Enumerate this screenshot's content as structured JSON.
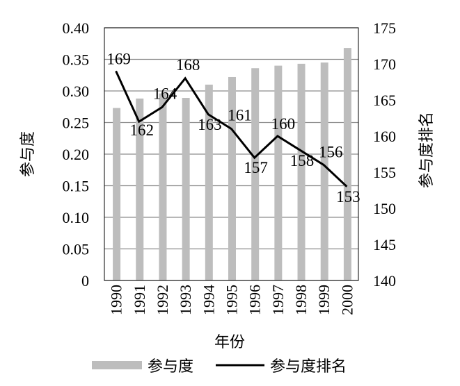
{
  "chart_data": {
    "type": "bar+line",
    "xlabel": "年份",
    "categories": [
      "1990",
      "1991",
      "1992",
      "1993",
      "1994",
      "1995",
      "1996",
      "1997",
      "1998",
      "1999",
      "2000"
    ],
    "series": [
      {
        "name": "参与度",
        "type": "bar",
        "axis": "left",
        "color": "#bdbdbd",
        "values": [
          0.273,
          0.288,
          0.296,
          0.289,
          0.31,
          0.322,
          0.336,
          0.34,
          0.343,
          0.345,
          0.368
        ]
      },
      {
        "name": "参与度排名",
        "type": "line",
        "axis": "right",
        "color": "#000000",
        "values": [
          169,
          162,
          164,
          168,
          163,
          161,
          157,
          160,
          158,
          156,
          153
        ],
        "labels": [
          "169",
          "162",
          "164",
          "168",
          "163",
          "161",
          "157",
          "160",
          "158",
          "156",
          "153"
        ]
      }
    ],
    "y_left": {
      "label": "参与度",
      "lim": [
        0,
        0.4
      ],
      "ticks": [
        "0",
        "0.05",
        "0.10",
        "0.15",
        "0.20",
        "0.25",
        "0.30",
        "0.35",
        "0.40"
      ]
    },
    "y_right": {
      "label": "参与度排名",
      "lim": [
        140,
        175
      ],
      "ticks": [
        "140",
        "145",
        "150",
        "155",
        "160",
        "165",
        "170",
        "175"
      ]
    },
    "grid": "horizontal",
    "legend": "bottom"
  }
}
